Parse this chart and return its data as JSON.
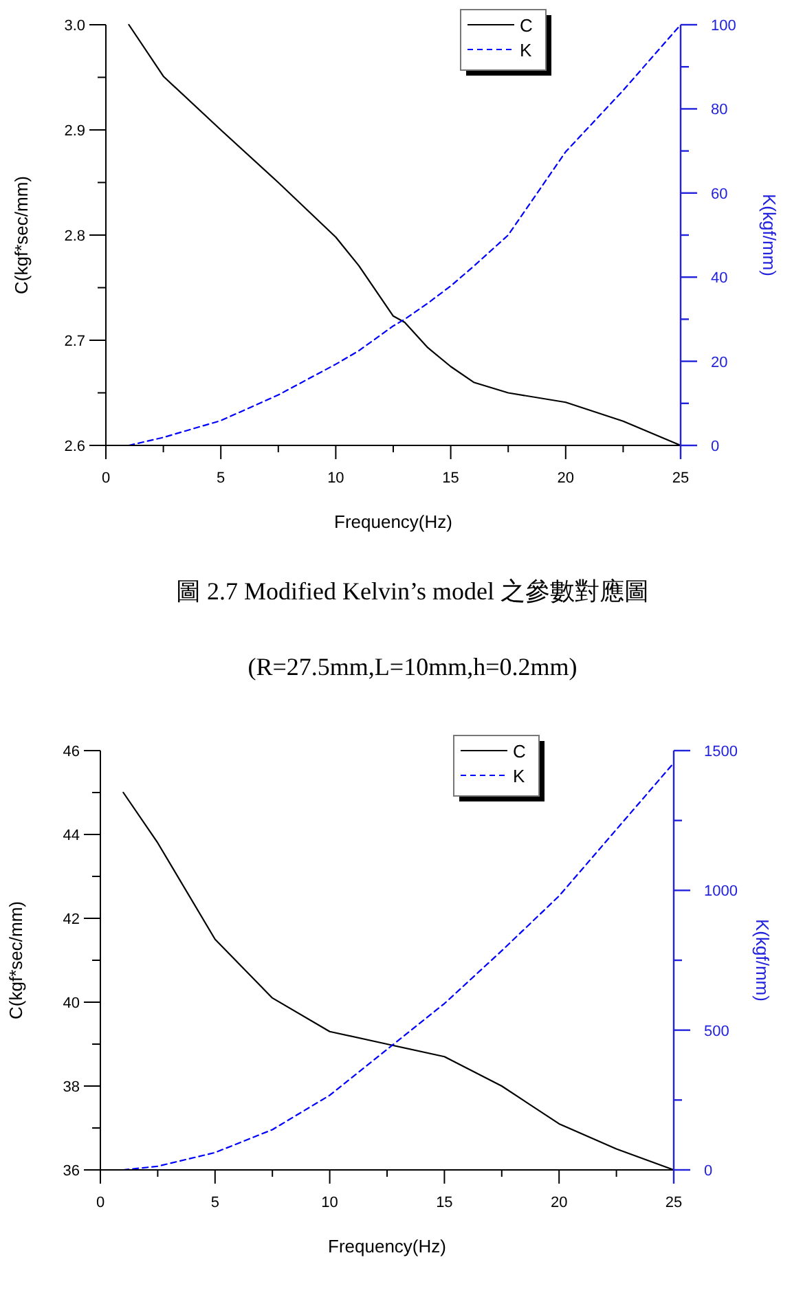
{
  "chart_data": [
    {
      "type": "line",
      "xlabel": "Frequency(Hz)",
      "ylabel": "C(kgf*sec/mm)",
      "y2label": "K(kgf/mm)",
      "legend": "top right",
      "x": [
        1,
        2.5,
        5,
        7.5,
        10,
        11,
        12.5,
        13,
        14,
        15,
        16,
        17.5,
        20,
        22.5,
        25
      ],
      "series": [
        {
          "name": "C",
          "color": "#000000",
          "line_style": "solid",
          "values": [
            3.0,
            2.951,
            2.9,
            2.85,
            2.798,
            2.771,
            2.723,
            2.717,
            2.693,
            2.675,
            2.66,
            2.65,
            2.641,
            2.623,
            2.6
          ]
        },
        {
          "name": "K",
          "color": "#0000ff",
          "line_style": "dashed",
          "axis": "y2",
          "values": [
            0,
            1.9,
            5.9,
            12.0,
            19.3,
            22.5,
            28.4,
            30.0,
            33.8,
            37.9,
            42.6,
            50.0,
            69.8,
            84.4,
            100
          ]
        }
      ],
      "xlim": [
        0,
        25
      ],
      "xticks": [
        0,
        {
          "value": 2.5,
          "label": null
        },
        5,
        {
          "value": 7.5,
          "label": null
        },
        10,
        {
          "value": 12.5,
          "label": null
        },
        15,
        {
          "value": 17.5,
          "label": null
        },
        20,
        {
          "value": 22.5,
          "label": null
        },
        25
      ],
      "ylim": [
        2.6,
        3.0
      ],
      "yticks": [
        {
          "value": 2.6,
          "label": "2.6"
        },
        {
          "value": 2.65,
          "label": null
        },
        {
          "value": 2.7,
          "label": "2.7"
        },
        {
          "value": 2.75,
          "label": null
        },
        {
          "value": 2.8,
          "label": "2.8"
        },
        {
          "value": 2.85,
          "label": null
        },
        {
          "value": 2.9,
          "label": "2.9"
        },
        {
          "value": 2.95,
          "label": null
        },
        {
          "value": 3.0,
          "label": "3.0"
        }
      ],
      "y2lim": [
        0,
        100
      ],
      "y2ticks": [
        0,
        {
          "value": 10,
          "label": null
        },
        20,
        {
          "value": 30,
          "label": null
        },
        40,
        {
          "value": 50,
          "label": null
        },
        60,
        {
          "value": 70,
          "label": null
        },
        80,
        {
          "value": 90,
          "label": null
        },
        100
      ],
      "annotations": [
        "圖 2.7 Modified Kelvin’s model 之參數對應圖",
        "(R=27.5mm,L=10mm,h=0.2mm)"
      ]
    },
    {
      "type": "line",
      "xlabel": "Frequency(Hz)",
      "ylabel": "C(kgf*sec/mm)",
      "y2label": "K(kgf/mm)",
      "legend": "top right",
      "x": [
        1,
        2.5,
        5,
        7.5,
        10,
        12.5,
        15,
        17.5,
        20,
        22.5,
        25
      ],
      "series": [
        {
          "name": "C",
          "color": "#000000",
          "line_style": "solid",
          "values": [
            45.0,
            43.8,
            41.5,
            40.1,
            39.3,
            39.0,
            38.7,
            38.0,
            37.1,
            36.5,
            36.0
          ]
        },
        {
          "name": "K",
          "color": "#0000ff",
          "line_style": "dashed",
          "axis": "y2",
          "values": [
            0,
            13,
            62,
            144,
            267,
            431,
            595,
            784,
            980,
            1218,
            1456
          ]
        }
      ],
      "xlim": [
        0,
        25
      ],
      "xticks": [
        0,
        {
          "value": 2.5,
          "label": null
        },
        5,
        {
          "value": 7.5,
          "label": null
        },
        10,
        {
          "value": 12.5,
          "label": null
        },
        15,
        {
          "value": 17.5,
          "label": null
        },
        20,
        {
          "value": 22.5,
          "label": null
        },
        25
      ],
      "ylim": [
        36,
        46
      ],
      "yticks": [
        36,
        {
          "value": 37,
          "label": null
        },
        38,
        {
          "value": 39,
          "label": null
        },
        40,
        {
          "value": 41,
          "label": null
        },
        42,
        {
          "value": 43,
          "label": null
        },
        44,
        {
          "value": 45,
          "label": null
        },
        46
      ],
      "y2lim": [
        0,
        1500
      ],
      "y2ticks": [
        0,
        {
          "value": 250,
          "label": null
        },
        500,
        {
          "value": 750,
          "label": null
        },
        1000,
        {
          "value": 1250,
          "label": null
        },
        1500
      ]
    }
  ]
}
